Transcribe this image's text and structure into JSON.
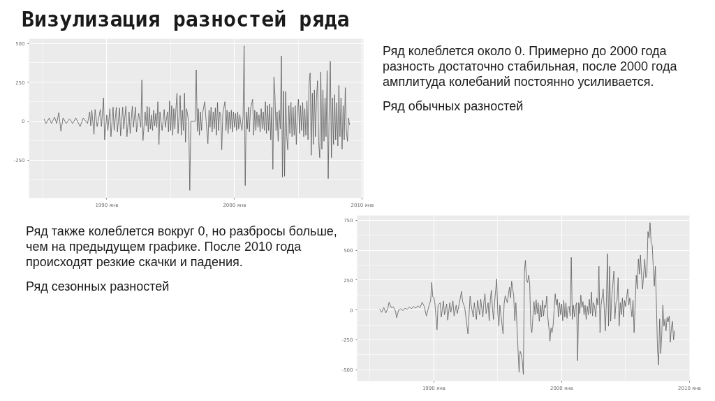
{
  "chart_data": [
    {
      "type": "line",
      "title": "Визулизация разностей ряда",
      "annotations": [
        "Ряд колеблется около 0. Примерно до 2000 года разность достаточно стабильная, после 2000 года амплитуда колебаний постоянно усиливается.",
        "Ряд обычных разностей"
      ],
      "color": "#595959",
      "grid": true,
      "xlim": [
        "1983-12",
        "2010-02"
      ],
      "ylim": [
        -495,
        530
      ],
      "xticks": [
        {
          "value": "1990-01",
          "label": "1990 янв"
        },
        {
          "value": "2000-01",
          "label": "2000 янв"
        },
        {
          "value": "2010-01",
          "label": "2010 янв"
        }
      ],
      "yticks": [
        -250,
        0,
        250,
        500
      ],
      "x": [
        "1985-02",
        "1985-04",
        "1985-07",
        "1985-09",
        "1985-12",
        "1986-02",
        "1986-04",
        "1986-06",
        "1986-08",
        "1986-11",
        "1987-02",
        "1987-05",
        "1987-08",
        "1987-12",
        "1988-03",
        "1988-07",
        "1988-09",
        "1988-10",
        "1988-11",
        "1989-01",
        "1989-02",
        "1989-04",
        "1989-07",
        "1989-08",
        "1989-10",
        "1989-11",
        "1990-01",
        "1990-02",
        "1990-04",
        "1990-05",
        "1990-07",
        "1990-08",
        "1990-10",
        "1990-11",
        "1991-01",
        "1991-02",
        "1991-04",
        "1991-05",
        "1991-07",
        "1991-08",
        "1991-10",
        "1991-11",
        "1992-01",
        "1992-02",
        "1992-04",
        "1992-05",
        "1992-07",
        "1992-09",
        "1992-10",
        "1992-11",
        "1993-01",
        "1993-02",
        "1993-03",
        "1993-04",
        "1993-05",
        "1993-06",
        "1993-07",
        "1993-08",
        "1993-09",
        "1993-10",
        "1993-11",
        "1993-12",
        "1994-01",
        "1994-02",
        "1994-03",
        "1994-05",
        "1994-07",
        "1994-08",
        "1994-10",
        "1994-11",
        "1994-12",
        "1995-01",
        "1995-02",
        "1995-03",
        "1995-04",
        "1995-05",
        "1995-06",
        "1995-07",
        "1995-08",
        "1995-10",
        "1995-11",
        "1995-12",
        "1996-01",
        "1996-02",
        "1996-03",
        "1996-04",
        "1996-05",
        "1996-06",
        "1996-07",
        "1996-08",
        "1996-11",
        "1996-12",
        "1997-01",
        "1997-02",
        "1997-03",
        "1997-04",
        "1997-05",
        "1997-06",
        "1997-07",
        "1997-09",
        "1997-10",
        "1997-12",
        "1998-01",
        "1998-02",
        "1998-03",
        "1998-04",
        "1998-05",
        "1998-06",
        "1998-07",
        "1998-08",
        "1998-09",
        "1998-10",
        "1998-11",
        "1998-12",
        "1999-01",
        "1999-02",
        "1999-04",
        "1999-05",
        "1999-06",
        "1999-07",
        "1999-08",
        "1999-09",
        "1999-10",
        "1999-11",
        "1999-12",
        "2000-01",
        "2000-02",
        "2000-03",
        "2000-04",
        "2000-05",
        "2000-06",
        "2000-07",
        "2000-08",
        "2000-09",
        "2000-10",
        "2000-11",
        "2000-12",
        "2001-01",
        "2001-02",
        "2001-03",
        "2001-04",
        "2001-06",
        "2001-07",
        "2001-08",
        "2001-09",
        "2001-10",
        "2001-11",
        "2001-12",
        "2002-01",
        "2002-02",
        "2002-03",
        "2002-04",
        "2002-05",
        "2002-06",
        "2002-07",
        "2002-08",
        "2002-09",
        "2002-10",
        "2002-11",
        "2002-12",
        "2003-01",
        "2003-02",
        "2003-03",
        "2003-04",
        "2003-05",
        "2003-06",
        "2003-07",
        "2003-08",
        "2003-09",
        "2003-10",
        "2003-11",
        "2003-12",
        "2004-01",
        "2004-02",
        "2004-03",
        "2004-04",
        "2004-05",
        "2004-06",
        "2004-07",
        "2004-08",
        "2004-09",
        "2004-10",
        "2004-11",
        "2004-12",
        "2005-01",
        "2005-02",
        "2005-03",
        "2005-04",
        "2005-05",
        "2005-06",
        "2005-07",
        "2005-08",
        "2005-09",
        "2005-10",
        "2005-11",
        "2005-12",
        "2006-01",
        "2006-02",
        "2006-03",
        "2006-04",
        "2006-05",
        "2006-06",
        "2006-07",
        "2006-08",
        "2006-09",
        "2006-10",
        "2006-11",
        "2006-12",
        "2007-01",
        "2007-02",
        "2007-03",
        "2007-04",
        "2007-05",
        "2007-06",
        "2007-07",
        "2007-08",
        "2007-09",
        "2007-10",
        "2007-11",
        "2007-12",
        "2008-01",
        "2008-02",
        "2008-03",
        "2008-04",
        "2008-05",
        "2008-06",
        "2008-07",
        "2008-08",
        "2008-09",
        "2008-10",
        "2008-11",
        "2008-12",
        "2009-01"
      ],
      "values": [
        15,
        -15,
        20,
        -15,
        25,
        -15,
        55,
        -65,
        20,
        -15,
        15,
        -15,
        20,
        -35,
        20,
        -15,
        60,
        -30,
        70,
        -85,
        75,
        -35,
        75,
        -35,
        150,
        -120,
        40,
        -60,
        80,
        -100,
        90,
        -60,
        90,
        -70,
        85,
        -95,
        90,
        -50,
        95,
        -100,
        60,
        -80,
        95,
        -40,
        90,
        -70,
        50,
        -40,
        265,
        -125,
        60,
        -30,
        95,
        -70,
        90,
        -50,
        40,
        -60,
        70,
        -30,
        50,
        -40,
        125,
        -150,
        60,
        -60,
        75,
        -40,
        60,
        -70,
        130,
        -60,
        100,
        -90,
        80,
        -50,
        80,
        180,
        -80,
        165,
        -90,
        70,
        -60,
        180,
        -135,
        80,
        40,
        -10,
        -445,
        0,
        0,
        0,
        330,
        -65,
        80,
        -90,
        60,
        -60,
        50,
        125,
        30,
        -145,
        70,
        -40,
        90,
        -70,
        60,
        -50,
        85,
        -90,
        120,
        -60,
        60,
        40,
        -185,
        50,
        125,
        -60,
        70,
        -80,
        60,
        -50,
        70,
        -70,
        60,
        -40,
        50,
        -60,
        60,
        -50,
        40,
        -20,
        -60,
        30,
        485,
        -415,
        60,
        -50,
        90,
        -70,
        80,
        140,
        -90,
        70,
        -60,
        60,
        -40,
        40,
        -70,
        80,
        -50,
        60,
        -60,
        125,
        -80,
        100,
        -60,
        110,
        -120,
        90,
        -310,
        285,
        165,
        -60,
        60,
        -130,
        70,
        -50,
        420,
        -360,
        195,
        -355,
        190,
        -100,
        -185,
        100,
        -80,
        120,
        -100,
        90,
        -90,
        100,
        -150,
        60,
        140,
        -80,
        100,
        -60,
        120,
        -100,
        80,
        -90,
        130,
        -120,
        245,
        310,
        -220,
        180,
        -150,
        200,
        -100,
        150,
        260,
        -130,
        -235,
        315,
        -180,
        200,
        -130,
        150,
        -100,
        325,
        -370,
        100,
        385,
        -235,
        150,
        -150,
        170,
        -120,
        120,
        -160,
        230,
        -100,
        150,
        -180,
        100,
        -120,
        215,
        -60,
        -130,
        20,
        -25
      ]
    },
    {
      "type": "line",
      "annotations": [
        "Ряд также колеблется вокруг 0, но разбросы больше, чем на предыдущем графике. После 2010 года происходят резкие скачки и падения.",
        "Ряд сезонных разностей"
      ],
      "color": "#595959",
      "grid": true,
      "xlim": [
        "1984-01",
        "2010-01"
      ],
      "ylim": [
        -595,
        790
      ],
      "xticks": [
        {
          "value": "1990-01",
          "label": "1990 янв"
        },
        {
          "value": "2000-01",
          "label": "2000 янв"
        },
        {
          "value": "2010-01",
          "label": "2010 янв"
        }
      ],
      "yticks": [
        -500,
        -250,
        0,
        250,
        500,
        750
      ],
      "x": [
        "1985-10",
        "1985-12",
        "1986-02",
        "1986-04",
        "1986-06",
        "1986-07",
        "1986-09",
        "1986-11",
        "1987-01",
        "1987-02",
        "1987-04",
        "1987-06",
        "1987-08",
        "1987-10",
        "1987-12",
        "1988-02",
        "1988-04",
        "1988-06",
        "1988-08",
        "1988-10",
        "1988-12",
        "1989-02",
        "1989-04",
        "1989-06",
        "1989-08",
        "1989-10",
        "1989-11",
        "1989-12",
        "1990-01",
        "1990-02",
        "1990-04",
        "1990-05",
        "1990-07",
        "1990-08",
        "1990-10",
        "1990-11",
        "1991-01",
        "1991-02",
        "1991-04",
        "1991-05",
        "1991-07",
        "1991-08",
        "1991-10",
        "1991-11",
        "1992-01",
        "1992-03",
        "1992-04",
        "1992-06",
        "1992-09",
        "1992-11",
        "1992-12",
        "1993-02",
        "1993-03",
        "1993-05",
        "1993-06",
        "1993-08",
        "1993-09",
        "1993-11",
        "1993-12",
        "1994-01",
        "1994-02",
        "1994-04",
        "1994-05",
        "1994-06",
        "1994-07",
        "1994-08",
        "1994-09",
        "1994-10",
        "1994-12",
        "1995-01",
        "1995-02",
        "1995-03",
        "1995-06",
        "1995-07",
        "1995-08",
        "1995-10",
        "1995-12",
        "1996-01",
        "1996-02",
        "1996-04",
        "1996-05",
        "1996-06",
        "1996-08",
        "1996-09",
        "1996-10",
        "1996-11",
        "1996-12",
        "1997-01",
        "1997-02",
        "1997-03",
        "1997-04",
        "1997-05",
        "1997-06",
        "1997-07",
        "1997-08",
        "1997-09",
        "1997-10",
        "1997-11",
        "1997-12",
        "1998-01",
        "1998-02",
        "1998-03",
        "1998-04",
        "1998-05",
        "1998-06",
        "1998-07",
        "1998-08",
        "1998-09",
        "1998-10",
        "1998-11",
        "1998-12",
        "1999-01",
        "1999-02",
        "1999-03",
        "1999-04",
        "1999-05",
        "1999-07",
        "1999-08",
        "1999-09",
        "1999-10",
        "1999-11",
        "1999-12",
        "2000-01",
        "2000-02",
        "2000-03",
        "2000-04",
        "2000-05",
        "2000-06",
        "2000-07",
        "2000-08",
        "2000-09",
        "2000-10",
        "2000-11",
        "2000-12",
        "2001-01",
        "2001-02",
        "2001-03",
        "2001-04",
        "2001-05",
        "2001-06",
        "2001-07",
        "2001-08",
        "2001-09",
        "2001-10",
        "2001-11",
        "2001-12",
        "2002-01",
        "2002-02",
        "2002-03",
        "2002-04",
        "2002-05",
        "2002-06",
        "2002-07",
        "2002-08",
        "2002-09",
        "2002-10",
        "2002-11",
        "2002-12",
        "2003-01",
        "2003-02",
        "2003-04",
        "2003-05",
        "2003-06",
        "2003-07",
        "2003-08",
        "2003-09",
        "2003-10",
        "2003-11",
        "2003-12",
        "2004-02",
        "2004-03",
        "2004-04",
        "2004-05",
        "2004-06",
        "2004-07",
        "2004-08",
        "2004-09",
        "2004-10",
        "2004-11",
        "2004-12",
        "2005-01",
        "2005-03",
        "2005-04",
        "2005-05",
        "2005-06",
        "2005-07",
        "2005-08",
        "2005-09",
        "2005-11",
        "2005-12",
        "2006-01",
        "2006-02",
        "2006-03",
        "2006-04",
        "2006-05",
        "2006-07",
        "2006-08",
        "2006-09",
        "2006-10",
        "2006-11",
        "2006-12",
        "2007-01",
        "2007-02",
        "2007-03",
        "2007-04",
        "2007-05",
        "2007-06",
        "2007-07",
        "2007-08",
        "2007-09",
        "2007-10",
        "2007-11",
        "2007-12",
        "2008-01",
        "2008-02",
        "2008-03",
        "2008-04",
        "2008-05",
        "2008-06",
        "2008-07",
        "2008-08",
        "2008-09",
        "2008-10",
        "2008-11"
      ],
      "values": [
        10,
        -20,
        20,
        -25,
        20,
        65,
        20,
        25,
        -10,
        -65,
        0,
        10,
        -5,
        15,
        5,
        25,
        10,
        30,
        15,
        35,
        20,
        65,
        30,
        -50,
        20,
        80,
        230,
        110,
        105,
        50,
        -165,
        40,
        60,
        -60,
        75,
        -40,
        50,
        -85,
        60,
        -20,
        75,
        -50,
        40,
        -30,
        60,
        155,
        70,
        20,
        -200,
        115,
        40,
        -60,
        60,
        -80,
        80,
        -40,
        90,
        -60,
        70,
        135,
        -30,
        60,
        -90,
        80,
        165,
        20,
        -80,
        60,
        260,
        -20,
        -135,
        40,
        -200,
        50,
        120,
        60,
        190,
        100,
        240,
        115,
        -90,
        60,
        -325,
        -520,
        -345,
        -370,
        -425,
        -540,
        325,
        415,
        250,
        230,
        290,
        220,
        -135,
        -190,
        -60,
        70,
        -40,
        85,
        -30,
        60,
        -95,
        40,
        -60,
        80,
        -50,
        40,
        20,
        115,
        -60,
        -150,
        -260,
        -150,
        -190,
        -130,
        135,
        40,
        90,
        -60,
        60,
        -40,
        50,
        -90,
        80,
        -60,
        60,
        -70,
        20,
        30,
        -50,
        440,
        -80,
        40,
        -60,
        30,
        60,
        -425,
        60,
        -30,
        125,
        20,
        70,
        -40,
        40,
        -80,
        30,
        -40,
        90,
        -30,
        150,
        -50,
        60,
        20,
        -60,
        100,
        40,
        365,
        -190,
        40,
        175,
        20,
        -175,
        60,
        470,
        -135,
        365,
        -95,
        100,
        325,
        -75,
        60,
        80,
        270,
        -135,
        60,
        -40,
        100,
        -60,
        80,
        30,
        175,
        40,
        100,
        20,
        -60,
        80,
        -190,
        290,
        175,
        425,
        300,
        460,
        290,
        175,
        425,
        270,
        300,
        655,
        600,
        730,
        555,
        540,
        365,
        200,
        365,
        40,
        -325,
        -460,
        -75,
        -365,
        -200,
        40,
        -135,
        -75,
        -175,
        -60,
        -100,
        -50,
        -270,
        -150,
        -95,
        -250,
        -175
      ]
    }
  ]
}
